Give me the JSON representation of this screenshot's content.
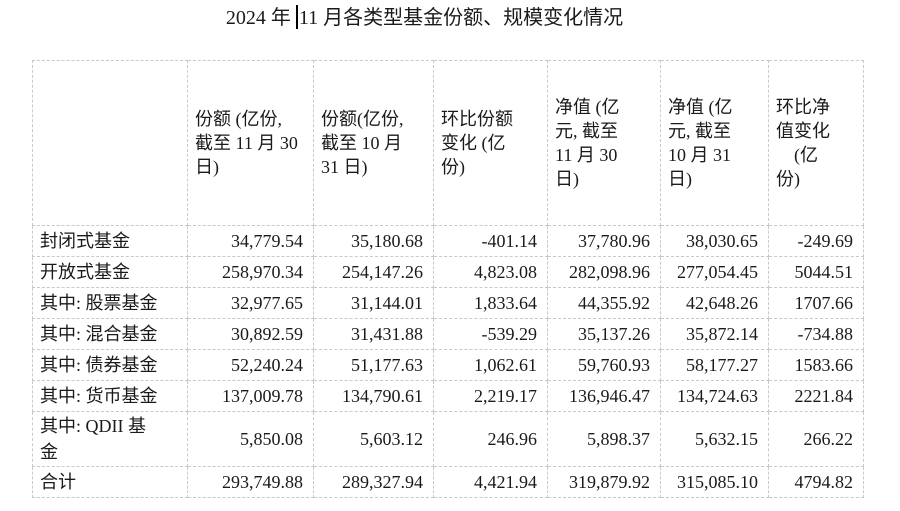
{
  "title": {
    "prefix": "2024 年",
    "suffix": "11 月各类型基金份额、规模变化情况"
  },
  "table": {
    "headers": [
      "",
      "份额 (亿份,\n截至 11 月 30\n日)",
      "份额(亿份,\n截至 10 月\n31 日)",
      "环比份额\n变化 (亿\n份)",
      "净值 (亿\n元, 截至\n11 月 30\n日)",
      "净值 (亿\n元, 截至\n10 月 31\n日)",
      "环比净\n值变化\n　(亿\n份)"
    ],
    "rows": [
      {
        "label": "封闭式基金",
        "values": [
          "34,779.54",
          "35,180.68",
          "-401.14",
          "37,780.96",
          "38,030.65",
          "-249.69"
        ]
      },
      {
        "label": "开放式基金",
        "values": [
          "258,970.34",
          "254,147.26",
          "4,823.08",
          "282,098.96",
          "277,054.45",
          "5044.51"
        ]
      },
      {
        "label": "其中: 股票基金",
        "values": [
          "32,977.65",
          "31,144.01",
          "1,833.64",
          "44,355.92",
          "42,648.26",
          "1707.66"
        ]
      },
      {
        "label": "其中: 混合基金",
        "values": [
          "30,892.59",
          "31,431.88",
          "-539.29",
          "35,137.26",
          "35,872.14",
          "-734.88"
        ]
      },
      {
        "label": "其中: 债券基金",
        "values": [
          "52,240.24",
          "51,177.63",
          "1,062.61",
          "59,760.93",
          "58,177.27",
          "1583.66"
        ]
      },
      {
        "label": "其中: 货币基金",
        "values": [
          "137,009.78",
          "134,790.61",
          "2,219.17",
          "136,946.47",
          "134,724.63",
          "2221.84"
        ]
      },
      {
        "label": "其中:  QDII 基\n金",
        "values": [
          "5,850.08",
          "5,603.12",
          "246.96",
          "5,898.37",
          "5,632.15",
          "266.22"
        ]
      },
      {
        "label": "合计",
        "values": [
          "293,749.88",
          "289,327.94",
          "4,421.94",
          "319,879.92",
          "315,085.10",
          "4794.82"
        ]
      }
    ]
  }
}
